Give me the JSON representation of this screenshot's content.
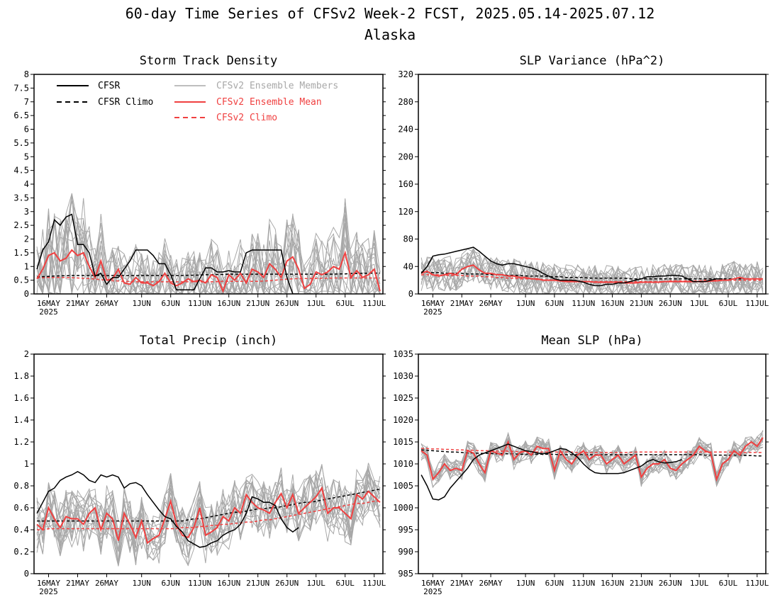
{
  "figure": {
    "title": "60-day Time Series of CFSv2 Week-2 FCST, 2025.05.14-2025.07.12",
    "subtitle": "Alaska"
  },
  "legend": {
    "cfsr": "CFSR",
    "cfsr_climo": "CFSR Climo",
    "ens_members": "CFSv2 Ensemble Members",
    "ens_mean": "CFSv2 Ensemble Mean",
    "cfsv2_climo": "CFSv2 Climo"
  },
  "x_axis": {
    "tick_labels": [
      "16MAY",
      "21MAY",
      "26MAY",
      "1JUN",
      "6JUN",
      "11JUN",
      "16JUN",
      "21JUN",
      "26JUN",
      "1JUL",
      "6JUL",
      "11JUL"
    ],
    "year_label": "2025"
  },
  "colors": {
    "cfsr": "#000000",
    "ens_members": "#a8a8a8",
    "ens_mean": "#f04040",
    "cfsv2_climo": "#f04040"
  },
  "chart_data": [
    {
      "type": "line",
      "title": "Storm Track Density",
      "ylim": [
        0,
        8
      ],
      "yticks": [
        "0",
        "0.5",
        "1",
        "1.5",
        "2",
        "2.5",
        "3",
        "3.5",
        "4",
        "4.5",
        "5",
        "5.5",
        "6",
        "6.5",
        "7",
        "7.5",
        "8"
      ],
      "grid": false,
      "legend_position": "top",
      "x_start_day": 0,
      "series": [
        {
          "name": "CFSR",
          "values": [
            0.9,
            1.6,
            1.9,
            2.7,
            2.5,
            2.8,
            2.9,
            1.8,
            1.8,
            1.5,
            0.65,
            0.75,
            0.35,
            0.6,
            0.6,
            0.9,
            1.2,
            1.6,
            1.6,
            1.6,
            1.4,
            1.1,
            1.1,
            0.7,
            0.15,
            0.15,
            0.15,
            0.15,
            0.55,
            0.95,
            0.95,
            0.8,
            0.8,
            0.85,
            0.8,
            0.8,
            1.5,
            1.6,
            1.6,
            1.6,
            1.6,
            1.6,
            1.6,
            0.6,
            0.0,
            0.0
          ]
        },
        {
          "name": "CFSR Climo",
          "values": [
            0.62,
            0.63,
            0.64,
            0.65,
            0.66,
            0.66,
            0.67,
            0.67,
            0.67,
            0.67,
            0.67,
            0.67,
            0.67,
            0.67,
            0.67,
            0.67,
            0.67,
            0.67,
            0.67,
            0.67,
            0.67,
            0.67,
            0.67,
            0.67,
            0.67,
            0.67,
            0.68,
            0.68,
            0.69,
            0.7,
            0.7,
            0.71,
            0.71,
            0.72,
            0.72,
            0.72,
            0.72,
            0.72,
            0.72,
            0.72,
            0.72,
            0.72,
            0.72,
            0.72,
            0.72,
            0.72,
            0.72,
            0.72,
            0.72,
            0.72,
            0.72,
            0.72,
            0.73,
            0.73,
            0.74,
            0.74,
            0.75,
            0.75,
            0.76,
            0.76
          ]
        },
        {
          "name": "CFSv2 Ensemble Mean",
          "values": [
            0.55,
            0.9,
            1.4,
            1.5,
            1.2,
            1.3,
            1.6,
            1.4,
            1.5,
            1.0,
            0.6,
            1.2,
            0.5,
            0.55,
            0.9,
            0.4,
            0.35,
            0.6,
            0.4,
            0.4,
            0.3,
            0.45,
            0.75,
            0.4,
            0.3,
            0.4,
            0.55,
            0.45,
            0.5,
            0.4,
            0.7,
            0.6,
            0.1,
            0.7,
            0.5,
            0.75,
            0.4,
            0.9,
            0.8,
            0.6,
            1.1,
            0.9,
            0.6,
            1.2,
            1.35,
            0.9,
            0.2,
            0.35,
            0.8,
            0.7,
            0.8,
            1.0,
            0.9,
            1.5,
            0.6,
            0.85,
            0.6,
            0.7,
            0.9,
            0.1
          ]
        },
        {
          "name": "CFSv2 Climo",
          "values": [
            0.58,
            0.59,
            0.6,
            0.6,
            0.6,
            0.6,
            0.59,
            0.58,
            0.57,
            0.56,
            0.54,
            0.52,
            0.5,
            0.48,
            0.47,
            0.46,
            0.45,
            0.44,
            0.44,
            0.44,
            0.44,
            0.44,
            0.44,
            0.44,
            0.44,
            0.44,
            0.44,
            0.44,
            0.44,
            0.44,
            0.44,
            0.45,
            0.46,
            0.46,
            0.46,
            0.46,
            0.46,
            0.46,
            0.46,
            0.47,
            0.48,
            0.5,
            0.52,
            0.54,
            0.55,
            0.56,
            0.56,
            0.56,
            0.56,
            0.57,
            0.57,
            0.58,
            0.58,
            0.58,
            0.58,
            0.58,
            0.58,
            0.58,
            0.58,
            0.58
          ]
        }
      ]
    },
    {
      "type": "line",
      "title": "SLP Variance (hPa^2)",
      "ylim": [
        0,
        320
      ],
      "yticks": [
        "0",
        "40",
        "80",
        "120",
        "160",
        "200",
        "240",
        "280",
        "320"
      ],
      "grid": false,
      "x_start_day": 0,
      "series": [
        {
          "name": "CFSR",
          "values": [
            30,
            40,
            55,
            57,
            58,
            60,
            62,
            64,
            66,
            68,
            62,
            55,
            48,
            44,
            42,
            44,
            44,
            42,
            40,
            38,
            35,
            30,
            26,
            22,
            20,
            20,
            20,
            19,
            17,
            14,
            12,
            12,
            14,
            14,
            16,
            16,
            18,
            20,
            22,
            25,
            25,
            26,
            26,
            27,
            27,
            26,
            22,
            18,
            18,
            18,
            20,
            22,
            22
          ]
        },
        {
          "name": "CFSR Climo",
          "values": [
            32,
            32,
            31,
            31,
            30,
            30,
            30,
            30,
            29,
            29,
            29,
            29,
            28,
            28,
            28,
            27,
            27,
            27,
            26,
            26,
            26,
            26,
            25,
            25,
            25,
            24,
            24,
            24,
            24,
            23,
            23,
            23,
            23,
            23,
            23,
            23,
            22,
            22,
            22,
            22,
            22,
            22,
            22,
            22,
            22,
            22,
            22,
            22,
            22,
            22,
            22,
            22,
            22,
            22,
            22,
            22,
            22,
            22,
            22,
            22
          ]
        },
        {
          "name": "CFSv2 Ensemble Mean",
          "values": [
            30,
            33,
            28,
            26,
            28,
            30,
            28,
            36,
            40,
            42,
            35,
            30,
            30,
            28,
            28,
            26,
            26,
            24,
            24,
            22,
            22,
            20,
            20,
            20,
            19,
            18,
            18,
            18,
            18,
            18,
            17,
            17,
            17,
            17,
            17,
            16,
            16,
            16,
            17,
            17,
            17,
            17,
            18,
            18,
            18,
            18,
            18,
            18,
            18,
            18,
            19,
            19,
            20,
            20,
            22,
            24,
            22,
            22,
            22,
            22
          ]
        },
        {
          "name": "CFSv2 Climo",
          "values": [
            28,
            28,
            28,
            28,
            27,
            27,
            27,
            27,
            26,
            26,
            26,
            25,
            25,
            24,
            24,
            23,
            23,
            22,
            22,
            22,
            21,
            21,
            20,
            20,
            20,
            19,
            19,
            19,
            18,
            18,
            18,
            18,
            18,
            18,
            18,
            18,
            18,
            18,
            18,
            18,
            18,
            18,
            18,
            19,
            19,
            19,
            19,
            19,
            19,
            20,
            20,
            20,
            20,
            20,
            20,
            20,
            20,
            20,
            20,
            20
          ]
        }
      ]
    },
    {
      "type": "line",
      "title": "Total Precip (inch)",
      "ylim": [
        0,
        2
      ],
      "yticks": [
        "0",
        "0.2",
        "0.4",
        "0.6",
        "0.8",
        "1",
        "1.2",
        "1.4",
        "1.6",
        "1.8",
        "2"
      ],
      "grid": false,
      "x_start_day": 0,
      "series": [
        {
          "name": "CFSR",
          "values": [
            0.55,
            0.65,
            0.75,
            0.78,
            0.85,
            0.88,
            0.9,
            0.93,
            0.9,
            0.85,
            0.83,
            0.9,
            0.88,
            0.9,
            0.88,
            0.78,
            0.82,
            0.83,
            0.8,
            0.72,
            0.65,
            0.58,
            0.52,
            0.5,
            0.43,
            0.38,
            0.3,
            0.27,
            0.24,
            0.25,
            0.28,
            0.3,
            0.35,
            0.38,
            0.4,
            0.45,
            0.55,
            0.7,
            0.68,
            0.65,
            0.65,
            0.62,
            0.5,
            0.42,
            0.38,
            0.42
          ]
        },
        {
          "name": "CFSR Climo",
          "values": [
            0.48,
            0.48,
            0.48,
            0.48,
            0.48,
            0.48,
            0.48,
            0.48,
            0.48,
            0.48,
            0.48,
            0.48,
            0.48,
            0.48,
            0.48,
            0.48,
            0.48,
            0.48,
            0.48,
            0.48,
            0.48,
            0.48,
            0.48,
            0.48,
            0.48,
            0.48,
            0.49,
            0.5,
            0.5,
            0.51,
            0.52,
            0.53,
            0.54,
            0.55,
            0.56,
            0.56,
            0.57,
            0.58,
            0.59,
            0.59,
            0.6,
            0.6,
            0.61,
            0.62,
            0.63,
            0.64,
            0.65,
            0.65,
            0.66,
            0.67,
            0.68,
            0.69,
            0.7,
            0.71,
            0.72,
            0.73,
            0.74,
            0.75,
            0.76,
            0.77
          ]
        },
        {
          "name": "CFSv2 Ensemble Mean",
          "values": [
            0.45,
            0.4,
            0.6,
            0.5,
            0.42,
            0.52,
            0.5,
            0.5,
            0.45,
            0.55,
            0.6,
            0.4,
            0.55,
            0.5,
            0.3,
            0.55,
            0.45,
            0.33,
            0.48,
            0.28,
            0.32,
            0.35,
            0.5,
            0.66,
            0.45,
            0.35,
            0.33,
            0.42,
            0.6,
            0.35,
            0.38,
            0.42,
            0.52,
            0.48,
            0.6,
            0.55,
            0.72,
            0.65,
            0.6,
            0.58,
            0.55,
            0.65,
            0.73,
            0.6,
            0.72,
            0.55,
            0.6,
            0.65,
            0.7,
            0.78,
            0.55,
            0.6,
            0.6,
            0.55,
            0.5,
            0.72,
            0.68,
            0.75,
            0.7,
            0.65
          ]
        },
        {
          "name": "CFSv2 Climo",
          "values": [
            0.4,
            0.4,
            0.41,
            0.41,
            0.41,
            0.41,
            0.41,
            0.41,
            0.41,
            0.41,
            0.41,
            0.41,
            0.41,
            0.41,
            0.41,
            0.41,
            0.41,
            0.41,
            0.41,
            0.41,
            0.41,
            0.41,
            0.41,
            0.41,
            0.41,
            0.42,
            0.42,
            0.42,
            0.43,
            0.43,
            0.44,
            0.44,
            0.45,
            0.45,
            0.46,
            0.46,
            0.47,
            0.47,
            0.48,
            0.49,
            0.49,
            0.5,
            0.51,
            0.52,
            0.53,
            0.54,
            0.55,
            0.56,
            0.57,
            0.58,
            0.59,
            0.6,
            0.61,
            0.62,
            0.63,
            0.64,
            0.64,
            0.65,
            0.66,
            0.66
          ]
        }
      ]
    },
    {
      "type": "line",
      "title": "Mean SLP (hPa)",
      "ylim": [
        985,
        1035
      ],
      "yticks": [
        "985",
        "990",
        "995",
        "1000",
        "1005",
        "1010",
        "1015",
        "1020",
        "1025",
        "1030",
        "1035"
      ],
      "grid": false,
      "x_start_day": 0,
      "series": [
        {
          "name": "CFSR",
          "values": [
            1007.5,
            1005,
            1002,
            1001.8,
            1002.5,
            1004.5,
            1006,
            1007.5,
            1009,
            1011,
            1012,
            1012.5,
            1013,
            1013.5,
            1014,
            1014.5,
            1014,
            1013.5,
            1013,
            1012.8,
            1012.5,
            1012.3,
            1012.5,
            1013,
            1013.5,
            1013.3,
            1012.5,
            1011.5,
            1010,
            1008.8,
            1008,
            1007.8,
            1007.8,
            1007.8,
            1007.8,
            1008,
            1008.5,
            1009,
            1009.5,
            1010.5,
            1011,
            1010.5,
            1010.2,
            1010.3,
            1010.5,
            1011
          ]
        },
        {
          "name": "CFSR Climo",
          "values": [
            1013.2,
            1013.1,
            1013,
            1012.9,
            1012.8,
            1012.7,
            1012.7,
            1012.6,
            1012.5,
            1012.5,
            1012.4,
            1012.4,
            1012.4,
            1012.3,
            1012.3,
            1012.3,
            1012.3,
            1012.2,
            1012.2,
            1012.2,
            1012.2,
            1012.2,
            1012.2,
            1012.2,
            1012.1,
            1012.1,
            1012.1,
            1012.1,
            1012.1,
            1012.1,
            1012.1,
            1012.1,
            1012.1,
            1012.1,
            1012.1,
            1012.1,
            1012.1,
            1012.1,
            1012.1,
            1012.1,
            1012.1,
            1012.1,
            1012.1,
            1012.1,
            1012.1,
            1012.1,
            1012.1,
            1012.1,
            1012.1,
            1012,
            1012,
            1012,
            1012,
            1012,
            1012,
            1012,
            1011.9,
            1011.9,
            1011.8,
            1011.8
          ]
        },
        {
          "name": "CFSv2 Ensemble Mean",
          "values": [
            1013,
            1012,
            1006.5,
            1008,
            1010,
            1008.5,
            1009,
            1008.5,
            1013,
            1012.5,
            1010,
            1008,
            1013,
            1012.5,
            1012,
            1015,
            1011,
            1012.5,
            1013,
            1012,
            1014,
            1013.5,
            1013.5,
            1008.5,
            1013,
            1011,
            1010,
            1012,
            1013,
            1011,
            1012,
            1012,
            1010,
            1011,
            1012,
            1010,
            1011,
            1012,
            1007,
            1009,
            1010,
            1010,
            1011,
            1009,
            1008.5,
            1010,
            1011,
            1012,
            1014,
            1013,
            1012.5,
            1006.5,
            1010,
            1011,
            1013,
            1012,
            1014,
            1015,
            1014,
            1016
          ]
        },
        {
          "name": "CFSv2 Climo",
          "values": [
            1013.5,
            1013.5,
            1013.4,
            1013.4,
            1013.3,
            1013.3,
            1013.2,
            1013.2,
            1013.1,
            1013.1,
            1013,
            1013,
            1013,
            1012.9,
            1012.9,
            1012.9,
            1012.8,
            1012.8,
            1012.8,
            1012.8,
            1012.7,
            1012.7,
            1012.7,
            1012.7,
            1012.7,
            1012.7,
            1012.7,
            1012.6,
            1012.6,
            1012.6,
            1012.6,
            1012.6,
            1012.6,
            1012.6,
            1012.6,
            1012.6,
            1012.6,
            1012.7,
            1012.7,
            1012.7,
            1012.7,
            1012.7,
            1012.7,
            1012.7,
            1012.7,
            1012.7,
            1012.7,
            1012.7,
            1012.7,
            1012.7,
            1012.7,
            1012.7,
            1012.7,
            1012.7,
            1012.7,
            1012.7,
            1012.6,
            1012.6,
            1012.6,
            1012.6
          ]
        }
      ]
    }
  ]
}
